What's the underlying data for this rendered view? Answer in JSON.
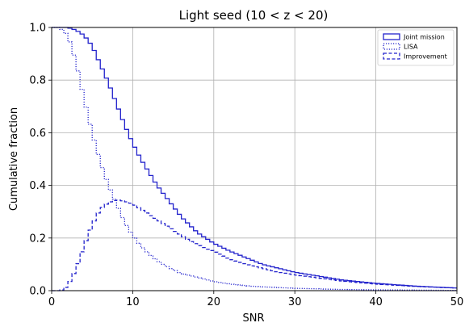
{
  "chart_data": {
    "type": "line",
    "title": "Light seed (10 < z < 20)",
    "xlabel": "SNR",
    "ylabel": "Cumulative fraction",
    "xlim": [
      0,
      50
    ],
    "ylim": [
      0,
      1
    ],
    "xticks": [
      "0",
      "10",
      "20",
      "30",
      "40",
      "50"
    ],
    "yticks": [
      "0.0",
      "0.2",
      "0.4",
      "0.6",
      "0.8",
      "1.0"
    ],
    "grid": true,
    "legend_position": "top-right",
    "series_color": "#2222cc",
    "series": [
      {
        "name": "Joint mission",
        "style": "solid",
        "points": [
          [
            0,
            1.0
          ],
          [
            1,
            1.0
          ],
          [
            2,
            1.0
          ],
          [
            3,
            0.99
          ],
          [
            4,
            0.97
          ],
          [
            5,
            0.93
          ],
          [
            6,
            0.86
          ],
          [
            7,
            0.79
          ],
          [
            8,
            0.71
          ],
          [
            9,
            0.63
          ],
          [
            10,
            0.56
          ],
          [
            11,
            0.5
          ],
          [
            12,
            0.45
          ],
          [
            13,
            0.4
          ],
          [
            14,
            0.36
          ],
          [
            15,
            0.32
          ],
          [
            16,
            0.28
          ],
          [
            17,
            0.25
          ],
          [
            18,
            0.22
          ],
          [
            19,
            0.2
          ],
          [
            20,
            0.18
          ],
          [
            22,
            0.15
          ],
          [
            24,
            0.125
          ],
          [
            26,
            0.1
          ],
          [
            28,
            0.085
          ],
          [
            30,
            0.07
          ],
          [
            33,
            0.055
          ],
          [
            36,
            0.04
          ],
          [
            40,
            0.028
          ],
          [
            45,
            0.017
          ],
          [
            50,
            0.01
          ]
        ]
      },
      {
        "name": "LISA",
        "style": "dotted",
        "points": [
          [
            0,
            1.0
          ],
          [
            1,
            1.0
          ],
          [
            2,
            0.97
          ],
          [
            3,
            0.87
          ],
          [
            4,
            0.73
          ],
          [
            5,
            0.6
          ],
          [
            6,
            0.49
          ],
          [
            7,
            0.4
          ],
          [
            8,
            0.33
          ],
          [
            9,
            0.26
          ],
          [
            10,
            0.21
          ],
          [
            11,
            0.17
          ],
          [
            12,
            0.14
          ],
          [
            13,
            0.115
          ],
          [
            14,
            0.095
          ],
          [
            15,
            0.08
          ],
          [
            16,
            0.065
          ],
          [
            18,
            0.05
          ],
          [
            20,
            0.035
          ],
          [
            22,
            0.025
          ],
          [
            25,
            0.016
          ],
          [
            30,
            0.009
          ],
          [
            35,
            0.005
          ],
          [
            40,
            0.003
          ],
          [
            50,
            0.001
          ]
        ]
      },
      {
        "name": "Improvement",
        "style": "dashed",
        "points": [
          [
            0,
            0.0
          ],
          [
            1,
            0.0
          ],
          [
            1.5,
            0.005
          ],
          [
            2,
            0.02
          ],
          [
            3,
            0.08
          ],
          [
            4,
            0.17
          ],
          [
            5,
            0.25
          ],
          [
            6,
            0.31
          ],
          [
            7,
            0.335
          ],
          [
            8,
            0.345
          ],
          [
            9,
            0.34
          ],
          [
            10,
            0.33
          ],
          [
            11,
            0.31
          ],
          [
            12,
            0.29
          ],
          [
            13,
            0.27
          ],
          [
            14,
            0.25
          ],
          [
            15,
            0.23
          ],
          [
            16,
            0.21
          ],
          [
            17,
            0.19
          ],
          [
            18,
            0.175
          ],
          [
            19,
            0.16
          ],
          [
            20,
            0.15
          ],
          [
            22,
            0.12
          ],
          [
            24,
            0.1
          ],
          [
            26,
            0.085
          ],
          [
            28,
            0.07
          ],
          [
            30,
            0.06
          ],
          [
            33,
            0.048
          ],
          [
            36,
            0.036
          ],
          [
            40,
            0.025
          ],
          [
            45,
            0.016
          ],
          [
            50,
            0.01
          ]
        ]
      }
    ]
  }
}
